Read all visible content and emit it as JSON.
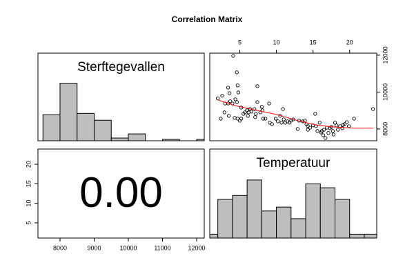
{
  "title": "Correlation Matrix",
  "chart_data": [
    {
      "type": "histogram",
      "label": "Sterftegevallen",
      "color": "#bebebe",
      "bins": [
        7500,
        8000,
        8500,
        9000,
        9500,
        10000,
        10500,
        11000,
        11500,
        12000,
        12500
      ],
      "values": [
        19,
        42,
        20,
        15,
        2,
        5,
        0,
        1,
        0,
        1
      ],
      "xlim": [
        7354,
        12222
      ],
      "ylim": [
        0,
        64
      ]
    },
    {
      "type": "scatter",
      "x": [
        2.0,
        2.6,
        2.4,
        2.9,
        3.0,
        3.4,
        3.7,
        4.0,
        3.6,
        3.4,
        4.1,
        4.6,
        4.7,
        4.8,
        4.6,
        4.4,
        4.7,
        4.3,
        5.2,
        5.0,
        5.5,
        5.7,
        6.0,
        6.1,
        6.4,
        6.6,
        7.0,
        7.1,
        7.2,
        7.4,
        7.4,
        7.8,
        8.0,
        8.1,
        8.2,
        8.5,
        9.0,
        9.1,
        9.4,
        9.9,
        10.2,
        10.5,
        10.7,
        10.9,
        11.0,
        11.2,
        11.5,
        11.8,
        12.0,
        12.3,
        12.9,
        13.1,
        13.6,
        13.9,
        14.1,
        14.3,
        14.3,
        14.6,
        15.0,
        15.3,
        15.4,
        15.6,
        15.9,
        16.1,
        16.2,
        16.4,
        16.5,
        16.7,
        16.9,
        17.1,
        17.3,
        17.5,
        17.7,
        17.8,
        18.0,
        18.2,
        18.4,
        18.7,
        19.0,
        19.1,
        19.3,
        19.6,
        19.9,
        20.6,
        23.2,
        3.5,
        5.2,
        6.2
      ],
      "values": [
        9650,
        9800,
        8560,
        8900,
        9380,
        9380,
        9500,
        9380,
        9940,
        10240,
        11960,
        11070,
        10360,
        9980,
        9460,
        9610,
        8560,
        8600,
        8560,
        8450,
        8820,
        8900,
        9010,
        8710,
        9080,
        8940,
        9080,
        8640,
        8820,
        10320,
        9460,
        8900,
        9200,
        9010,
        8560,
        8560,
        9380,
        8340,
        8260,
        8560,
        8410,
        8710,
        8340,
        9080,
        8520,
        8340,
        8410,
        8340,
        8450,
        8520,
        8000,
        8450,
        8410,
        8450,
        8260,
        7960,
        8150,
        8070,
        8190,
        8820,
        8150,
        7890,
        8340,
        7810,
        7890,
        7660,
        7960,
        7510,
        8070,
        7780,
        8040,
        8110,
        7890,
        7700,
        8340,
        8190,
        7960,
        8150,
        8040,
        8220,
        8260,
        8370,
        8150,
        8560,
        9080,
        8710,
        9160,
        8900
      ],
      "smooth": {
        "color": "#ff0000",
        "x": [
          2.0,
          4.3,
          7.2,
          10.0,
          12.9,
          15.3,
          17.7,
          20.5,
          23.2
        ],
        "values": [
          9570,
          9270,
          9010,
          8790,
          8450,
          8220,
          8110,
          8040,
          8040
        ]
      },
      "xlim": [
        0.9,
        23.7
      ],
      "ylim": [
        7360,
        12110
      ],
      "xticks": [
        5,
        10,
        15,
        20
      ],
      "yticks": [
        8000,
        10000,
        12000
      ]
    },
    {
      "type": "text",
      "text": "0.00",
      "xlim": [
        7354,
        12222
      ],
      "ylim": [
        1.1,
        23.9
      ],
      "xticks": [
        8000,
        9000,
        10000,
        11000,
        12000
      ],
      "yticks": [
        5,
        10,
        15,
        20
      ]
    },
    {
      "type": "histogram",
      "label": "Temperatuur",
      "color": "#bebebe",
      "bins": [
        0,
        2,
        4,
        6,
        8,
        10,
        12,
        14,
        16,
        18,
        20,
        22,
        24
      ],
      "values": [
        1,
        10,
        11,
        15,
        7,
        8,
        5,
        14,
        13,
        10,
        1,
        1
      ],
      "xlim": [
        0.9,
        23.7
      ],
      "ylim": [
        0,
        23
      ]
    }
  ]
}
